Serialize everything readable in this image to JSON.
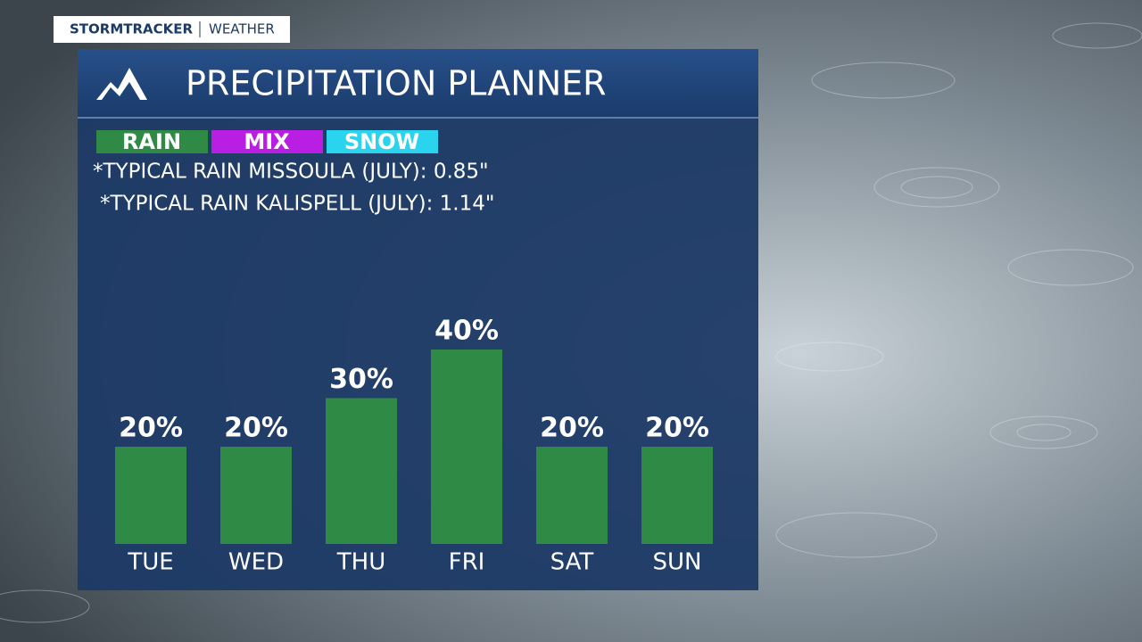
{
  "brand": {
    "name": "STORMTRACKER",
    "section": "WEATHER"
  },
  "chart_data": {
    "type": "bar",
    "title": "PRECIPITATION PLANNER",
    "legend": [
      {
        "name": "RAIN",
        "color": "#2f8a45"
      },
      {
        "name": "MIX",
        "color": "#b91fe3"
      },
      {
        "name": "SNOW",
        "color": "#2ad3ee"
      }
    ],
    "notes": [
      "*TYPICAL RAIN MISSOULA (JULY): 0.85\"",
      "*TYPICAL RAIN KALISPELL (JULY): 1.14\""
    ],
    "categories": [
      "TUE",
      "WED",
      "THU",
      "FRI",
      "SAT",
      "SUN"
    ],
    "values": [
      20,
      20,
      30,
      40,
      20,
      20
    ],
    "value_labels": [
      "20%",
      "20%",
      "30%",
      "40%",
      "20%",
      "20%"
    ],
    "color": "#2f8a45"
  }
}
